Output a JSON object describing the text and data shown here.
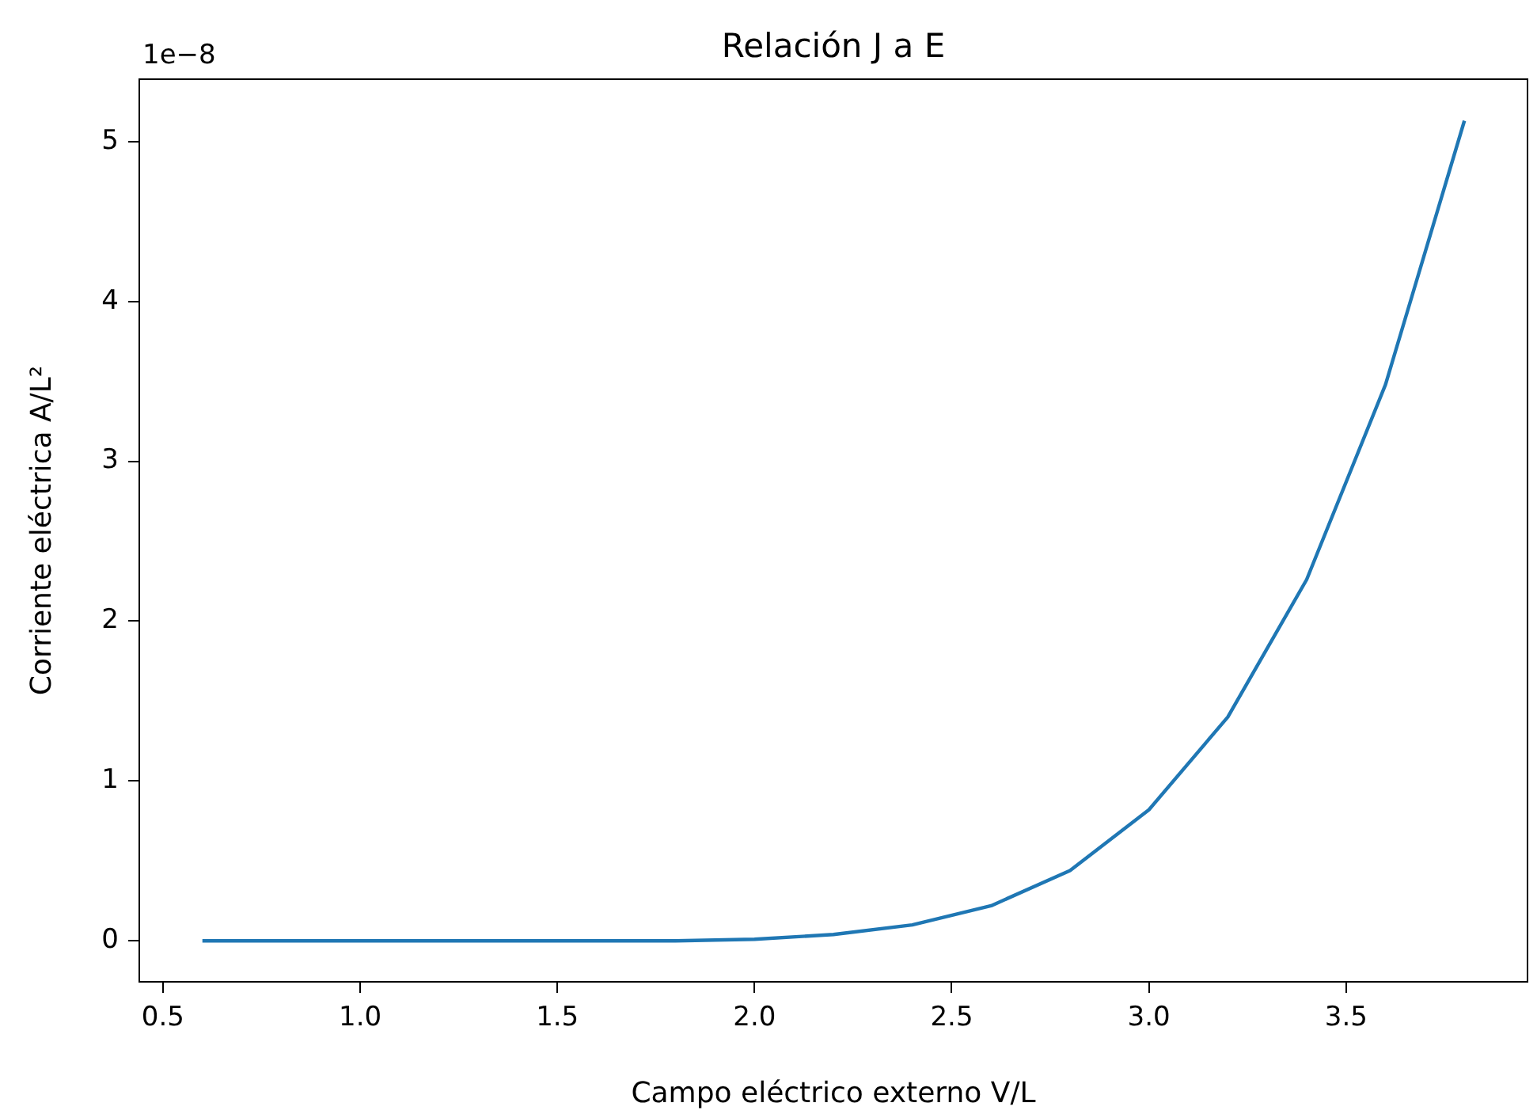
{
  "chart_data": {
    "type": "line",
    "title": "Relación J a E",
    "xlabel": "Campo eléctrico externo V/L",
    "ylabel": "Corriente eléctrica A/L²",
    "annotations": [
      "1e−8"
    ],
    "x": [
      0.6,
      0.8,
      1.0,
      1.2,
      1.4,
      1.6,
      1.8,
      2.0,
      2.2,
      2.4,
      2.6,
      2.8,
      3.0,
      3.2,
      3.4,
      3.6,
      3.8
    ],
    "series": [
      {
        "color": "#1f77b4",
        "values": [
          0,
          0,
          0,
          0,
          0,
          0,
          0,
          0.01,
          0.04,
          0.1,
          0.22,
          0.44,
          0.82,
          1.4,
          2.26,
          3.48,
          5.13
        ]
      }
    ],
    "xlim": [
      0.44,
      3.96
    ],
    "xticks": [
      0.5,
      {
        "value": 1,
        "label": "1.0"
      },
      1.5,
      {
        "value": 2,
        "label": "2.0"
      },
      2.5,
      {
        "value": 3,
        "label": "3.0"
      },
      3.5
    ],
    "ylim": [
      -0.256,
      5.39
    ],
    "yticks": [
      0,
      1,
      2,
      3,
      4,
      5
    ],
    "grid": false,
    "legend": false,
    "marker": "none",
    "line_style": "solid"
  }
}
